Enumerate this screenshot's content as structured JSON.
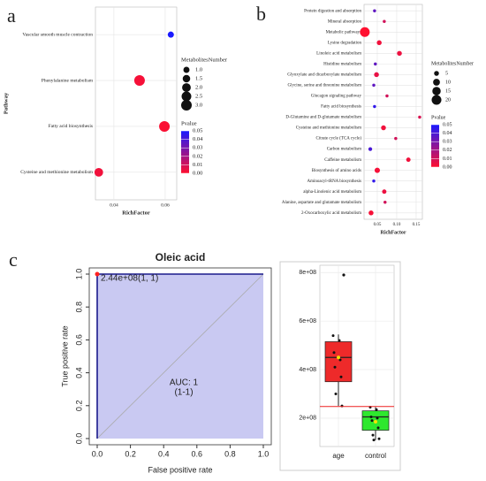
{
  "chart_data": [
    {
      "type": "scatter",
      "label": "a",
      "x_label": "RichFactor",
      "y_label": "Pathway",
      "categories": [
        "Vascular smooth muscle contraction",
        "Phenylalanine metabolism",
        "Fatty acid biosynthesis",
        "Cysteine and methionine metabolism"
      ],
      "values": [
        0.0622,
        0.05,
        0.0597,
        0.0341
      ],
      "sizes": [
        1,
        3,
        3,
        2
      ],
      "pvalues": [
        0.05,
        0.002,
        0.001,
        0.003
      ],
      "xlim": [
        0.0328,
        0.0645
      ],
      "xticks": [
        0.04,
        0.06
      ],
      "grid": true,
      "size_title": "MetabolitesNumber",
      "size_ticks": [
        {
          "value": 1,
          "label": "1.0"
        },
        1.5,
        {
          "value": 2,
          "label": "2.0"
        },
        2.5,
        {
          "value": 3,
          "label": "3.0"
        }
      ],
      "color_title": "Pvalue",
      "clim": [
        0,
        0.05
      ],
      "colormap": [
        "#ff1030",
        "#1a1aff"
      ],
      "color_ticks": [
        0.05,
        0.04,
        0.03,
        0.02,
        0.01,
        {
          "value": 0,
          "label": "0.00"
        }
      ]
    },
    {
      "type": "scatter",
      "label": "b",
      "x_label": "RichFactor",
      "categories": [
        "Protein digestion and absorption",
        "Mineral absorption",
        "Metabolic pathways",
        "Lysine degradation",
        "Linoleic acid metabolism",
        "Histidine metabolism",
        "Glyoxylate and dicarboxylate metabolism",
        "Glycine, serine and threonine metabolism",
        "Glucagon signaling pathway",
        "Fatty acid biosynthesis",
        "D-Glutamine and D-glutamate metabolism",
        "Cysteine and methionine metabolism",
        "Citrate cycle (TCA cycle)",
        "Carbon metabolism",
        "Caffeine metabolism",
        "Biosynthesis of amino acids",
        "Aminoacyl-tRNA biosynthesis",
        "alpha-Linolenic acid metabolism",
        "Alanine, aspartate and glutamate metabolism",
        "2-Oxocarboxylic acid metabolism"
      ],
      "values": [
        0.043,
        0.068,
        0.018,
        0.055,
        0.107,
        0.045,
        0.048,
        0.041,
        0.075,
        0.043,
        0.159,
        0.066,
        0.0975,
        0.032,
        0.13,
        0.05,
        0.041,
        0.068,
        0.07,
        0.034
      ],
      "sizes": [
        2,
        2,
        20,
        5,
        5,
        2,
        5,
        2,
        2,
        2,
        2,
        5,
        2,
        3,
        4,
        6,
        2,
        4,
        2,
        5
      ],
      "pvalues": [
        0.035,
        0.01,
        0,
        0.003,
        0.004,
        0.035,
        0.005,
        0.035,
        0.01,
        0.045,
        0.008,
        0.003,
        0.01,
        0.04,
        0.003,
        0.002,
        0.045,
        0.004,
        0.01,
        0.002
      ],
      "xlim": [
        0.016,
        0.166
      ],
      "xticks": [
        0.05,
        {
          "value": 0.1,
          "label": "0.10"
        },
        0.15
      ],
      "grid": true,
      "size_title": "MetabolitesNumber",
      "size_ticks": [
        5,
        10,
        15,
        20
      ],
      "color_title": "Pvalue",
      "clim": [
        0,
        0.05
      ],
      "colormap": [
        "#ff1030",
        "#1a1aff"
      ],
      "color_ticks": [
        0.05,
        0.04,
        0.03,
        0.02,
        0.01,
        {
          "value": 0,
          "label": "0.00"
        }
      ]
    },
    {
      "type": "line",
      "label": "c",
      "title": "Oleic acid",
      "x_label": "False positive rate",
      "y_label": "True positive rate",
      "x": [
        0,
        0,
        1
      ],
      "values": [
        0,
        1,
        1
      ],
      "color": "#1a1a8c",
      "fill": "#c9c9f2",
      "highlight": {
        "x": 0,
        "y": 1,
        "color": "#ff2020",
        "label": "2.44e+08(1, 1)"
      },
      "annotations": [
        "AUC: 1",
        "(1-1)"
      ],
      "xlim": [
        0,
        1
      ],
      "ylim": [
        0,
        1
      ],
      "xticks": [
        {
          "value": 0,
          "label": "0.0"
        },
        0.2,
        0.4,
        0.6,
        0.8,
        {
          "value": 1,
          "label": "1.0"
        }
      ],
      "yticks": [
        {
          "value": 0,
          "label": "0.0"
        },
        0.2,
        0.4,
        0.6,
        0.8,
        {
          "value": 1,
          "label": "1.0"
        }
      ]
    },
    {
      "type": "box",
      "categories": [
        "age",
        "control"
      ],
      "colors": [
        "#ee2a2a",
        "#2ee82e"
      ],
      "boxes": [
        {
          "low": 250000000,
          "q1": 350000000,
          "median": 450000000,
          "q3": 515000000,
          "high": 545000000,
          "mean": 450000000,
          "outliers": [
            790000000
          ]
        },
        {
          "low": 110000000,
          "q1": 150000000,
          "median": 205000000,
          "q3": 230000000,
          "high": 245000000,
          "mean": 185000000,
          "outliers": []
        }
      ],
      "points": [
        [
          540000000,
          520000000,
          470000000,
          440000000,
          410000000,
          370000000,
          300000000,
          250000000
        ],
        [
          245000000,
          235000000,
          205000000,
          200000000,
          190000000,
          160000000,
          130000000,
          115000000,
          110000000
        ]
      ],
      "hline": 248000000,
      "hline_color": "#ee2020",
      "ylim": [
        83000000,
        830000000
      ],
      "grid": true,
      "yticks": [
        {
          "value": 200000000,
          "label": "2e+08"
        },
        {
          "value": 400000000,
          "label": "4e+08"
        },
        {
          "value": 600000000,
          "label": "6e+08"
        },
        {
          "value": 800000000,
          "label": "8e+08"
        }
      ]
    }
  ]
}
